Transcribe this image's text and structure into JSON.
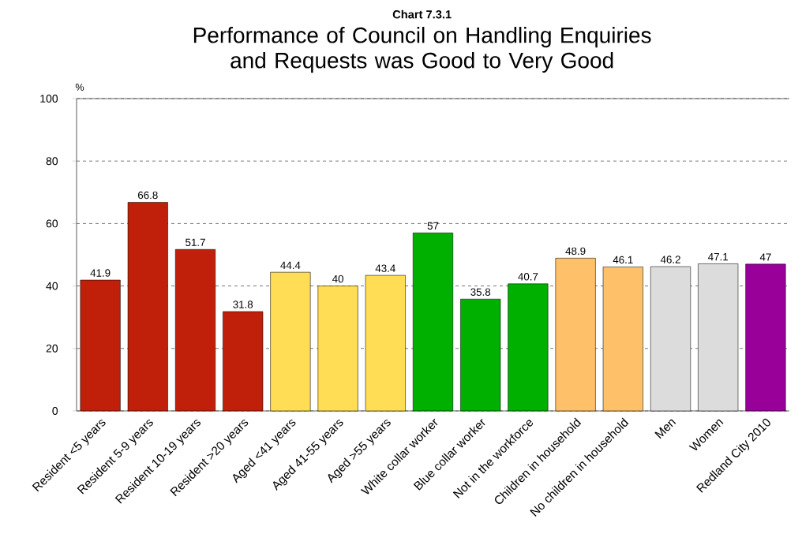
{
  "chart_data": {
    "type": "bar",
    "title": "Performance of Council on Handling Enquiries and Requests was Good to Very Good",
    "annotations": [
      "Chart 7.3.1"
    ],
    "ylabel": "%",
    "categories": [
      "Resident <5 years",
      "Resident 5-9 years",
      "Resident 10-19 years",
      "Resident >20 years",
      "Aged <41 years",
      "Aged 41-55 years",
      "Aged >55 years",
      "White collar worker",
      "Blue collar worker",
      "Not in the workforce",
      "Children in household",
      "No children in household",
      "Men",
      "Women",
      "Redland City 2010"
    ],
    "values": [
      41.9,
      66.8,
      51.7,
      31.8,
      44.4,
      40,
      43.4,
      57,
      35.8,
      40.7,
      48.9,
      46.1,
      46.2,
      47.1,
      47
    ],
    "colors": [
      "#c0200a",
      "#c0200a",
      "#c0200a",
      "#c0200a",
      "#ffdd55",
      "#ffdd55",
      "#ffdd55",
      "#00b000",
      "#00b000",
      "#00b000",
      "#ffc06a",
      "#ffc06a",
      "#dcdcdc",
      "#dcdcdc",
      "#990099"
    ],
    "ylim": [
      0,
      100
    ],
    "yticks": [
      0,
      20,
      40,
      60,
      80,
      100
    ],
    "grid": "y",
    "data_labels": true
  }
}
